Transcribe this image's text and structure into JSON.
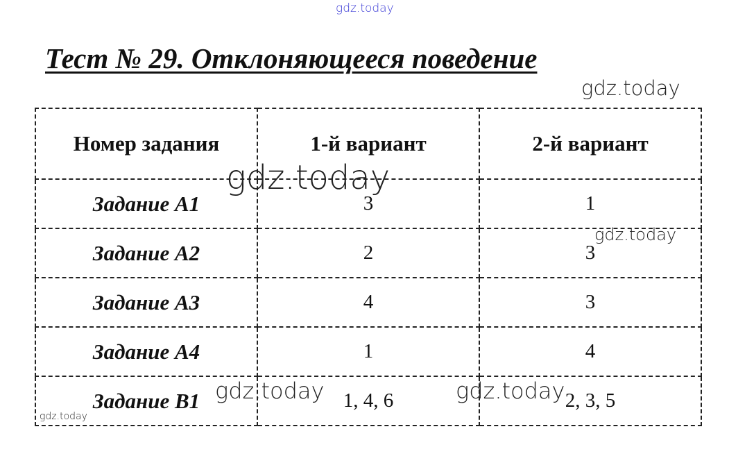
{
  "title": "Тест № 29. Отклоняющееся поведение",
  "table": {
    "headers": [
      "Номер задания",
      "1-й вариант",
      "2-й вариант"
    ],
    "rows": [
      [
        "Задание А1",
        "3",
        "1"
      ],
      [
        "Задание А2",
        "2",
        "3"
      ],
      [
        "Задание А3",
        "4",
        "3"
      ],
      [
        "Задание А4",
        "1",
        "4"
      ],
      [
        "Задание В1",
        "1, 4, 6",
        "2, 3, 5"
      ]
    ]
  },
  "watermarks": [
    "gdz.today",
    "gdz.today",
    "gdz.today",
    "gdz.today",
    "gdz.today",
    "gdz.today",
    "gdz.today"
  ],
  "colors": {
    "top_watermark": "#3b3bd6"
  }
}
